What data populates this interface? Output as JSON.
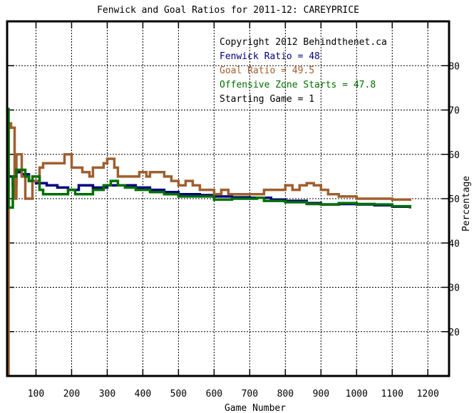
{
  "chart_data": {
    "type": "line",
    "title": "Fenwick and Goal Ratios for 2011-12: CAREYPRICE",
    "xlabel": "Game Number",
    "ylabel": "Percentage",
    "xlim": [
      0,
      1230
    ],
    "ylim": [
      10,
      90
    ],
    "x_ticks": [
      100,
      200,
      300,
      400,
      500,
      600,
      700,
      800,
      900,
      1000,
      1100,
      1200
    ],
    "y_ticks": [
      20,
      30,
      40,
      50,
      60,
      70,
      80
    ],
    "grid": true,
    "legend_position": "top-right",
    "annotations": {
      "copyright": "Copyright 2012 Behindthenet.ca",
      "starting_game": "Starting Game = 1"
    },
    "series": [
      {
        "name": "Fenwick Ratio = 48",
        "color": "#00007f",
        "points": [
          [
            1,
            55
          ],
          [
            10,
            56
          ],
          [
            20,
            55
          ],
          [
            35,
            53
          ],
          [
            45,
            56
          ],
          [
            60,
            55.5
          ],
          [
            80,
            54
          ],
          [
            100,
            53.5
          ],
          [
            130,
            53
          ],
          [
            160,
            52.5
          ],
          [
            190,
            52
          ],
          [
            220,
            53
          ],
          [
            260,
            52.5
          ],
          [
            300,
            53
          ],
          [
            340,
            53
          ],
          [
            380,
            52.5
          ],
          [
            420,
            52
          ],
          [
            460,
            51.5
          ],
          [
            500,
            51
          ],
          [
            560,
            50.8
          ],
          [
            600,
            50.5
          ],
          [
            650,
            50.3
          ],
          [
            700,
            50.2
          ],
          [
            760,
            49.8
          ],
          [
            800,
            49.5
          ],
          [
            860,
            49
          ],
          [
            900,
            48.7
          ],
          [
            950,
            48.8
          ],
          [
            1000,
            48.7
          ],
          [
            1050,
            48.5
          ],
          [
            1100,
            48.2
          ],
          [
            1150,
            48
          ]
        ]
      },
      {
        "name": "Goal Ratio = 49.5",
        "color": "#9f5f2f",
        "points": [
          [
            1,
            10
          ],
          [
            15,
            10
          ],
          [
            20,
            67
          ],
          [
            30,
            66
          ],
          [
            40,
            50
          ],
          [
            45,
            60
          ],
          [
            55,
            60
          ],
          [
            60,
            55
          ],
          [
            70,
            50
          ],
          [
            80,
            50
          ],
          [
            90,
            54
          ],
          [
            100,
            54
          ],
          [
            110,
            57
          ],
          [
            120,
            58
          ],
          [
            150,
            58
          ],
          [
            170,
            58
          ],
          [
            180,
            60
          ],
          [
            190,
            60
          ],
          [
            200,
            57
          ],
          [
            230,
            56
          ],
          [
            250,
            55
          ],
          [
            260,
            57
          ],
          [
            280,
            57
          ],
          [
            290,
            58
          ],
          [
            300,
            59
          ],
          [
            310,
            59
          ],
          [
            320,
            57
          ],
          [
            330,
            55
          ],
          [
            350,
            55
          ],
          [
            370,
            55
          ],
          [
            390,
            56
          ],
          [
            410,
            55
          ],
          [
            420,
            56
          ],
          [
            440,
            56
          ],
          [
            460,
            55
          ],
          [
            480,
            54
          ],
          [
            500,
            53
          ],
          [
            520,
            54
          ],
          [
            540,
            53
          ],
          [
            560,
            52
          ],
          [
            580,
            52
          ],
          [
            600,
            51
          ],
          [
            620,
            52
          ],
          [
            640,
            51
          ],
          [
            660,
            51
          ],
          [
            700,
            51
          ],
          [
            740,
            52
          ],
          [
            780,
            52
          ],
          [
            800,
            53
          ],
          [
            820,
            52
          ],
          [
            840,
            53
          ],
          [
            860,
            53.5
          ],
          [
            880,
            53
          ],
          [
            900,
            52
          ],
          [
            920,
            51
          ],
          [
            950,
            50.5
          ],
          [
            1000,
            50
          ],
          [
            1050,
            50
          ],
          [
            1100,
            49.8
          ],
          [
            1150,
            49.5
          ]
        ]
      },
      {
        "name": "Offensive Zone Starts = 47.8",
        "color": "#006f00",
        "points": [
          [
            1,
            70.5
          ],
          [
            10,
            70
          ],
          [
            15,
            50
          ],
          [
            20,
            48
          ],
          [
            30,
            48
          ],
          [
            35,
            55
          ],
          [
            45,
            56.5
          ],
          [
            60,
            56.5
          ],
          [
            70,
            55
          ],
          [
            80,
            54
          ],
          [
            90,
            55
          ],
          [
            100,
            55
          ],
          [
            110,
            52
          ],
          [
            120,
            51
          ],
          [
            140,
            51
          ],
          [
            170,
            51
          ],
          [
            190,
            52
          ],
          [
            210,
            51
          ],
          [
            230,
            51
          ],
          [
            260,
            52
          ],
          [
            290,
            53
          ],
          [
            310,
            54
          ],
          [
            330,
            53
          ],
          [
            350,
            52.5
          ],
          [
            380,
            52
          ],
          [
            420,
            51.5
          ],
          [
            460,
            51
          ],
          [
            500,
            50.5
          ],
          [
            560,
            50.5
          ],
          [
            600,
            49.8
          ],
          [
            650,
            50
          ],
          [
            700,
            50
          ],
          [
            720,
            50.2
          ],
          [
            740,
            49.5
          ],
          [
            800,
            49.2
          ],
          [
            860,
            48.8
          ],
          [
            900,
            48.7
          ],
          [
            950,
            49
          ],
          [
            1000,
            48.8
          ],
          [
            1050,
            48.7
          ],
          [
            1100,
            48.3
          ],
          [
            1150,
            47.8
          ]
        ]
      }
    ]
  }
}
